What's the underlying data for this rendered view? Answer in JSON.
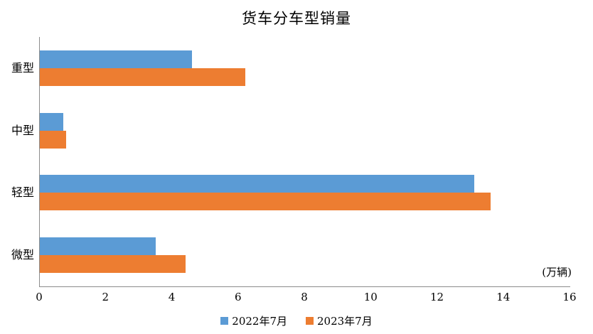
{
  "chart_data": {
    "type": "bar",
    "orientation": "horizontal",
    "title": "货车分车型销量",
    "unit_label": "(万辆)",
    "categories": [
      "重型",
      "中型",
      "轻型",
      "微型"
    ],
    "series": [
      {
        "name": "2022年7月",
        "color": "#5B9BD5",
        "values": [
          4.6,
          0.7,
          13.1,
          3.5
        ]
      },
      {
        "name": "2023年7月",
        "color": "#ED7D31",
        "values": [
          6.2,
          0.8,
          13.6,
          4.4
        ]
      }
    ],
    "x_axis": {
      "min": 0,
      "max": 16,
      "tick_interval": 2,
      "ticks": [
        0,
        2,
        4,
        6,
        8,
        10,
        12,
        14,
        16
      ]
    },
    "y_axis_order": "top-to-bottom",
    "legend_position": "bottom",
    "grid": false,
    "axis_color": "#8C8C8C",
    "background_color": "#FFFFFF"
  }
}
